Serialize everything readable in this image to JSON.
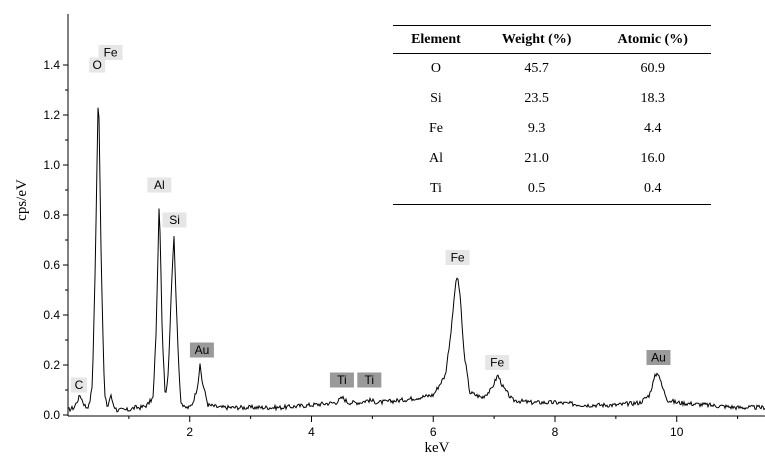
{
  "chart_data": {
    "type": "line",
    "xlabel": "keV",
    "ylabel": "cps/eV",
    "xlim": [
      0.0,
      11.45
    ],
    "ylim": [
      0.0,
      1.5
    ],
    "x_ticks": [
      2,
      4,
      6,
      8,
      10
    ],
    "y_ticks": [
      0.0,
      0.2,
      0.4,
      0.6,
      0.8,
      1.0,
      1.2,
      1.4
    ],
    "x_tick_labels": [
      "2",
      "4",
      "6",
      "8",
      "10"
    ],
    "y_tick_labels": [
      "0.0",
      "0.2",
      "0.4",
      "0.6",
      "0.8",
      "1.0",
      "1.2",
      "1.4"
    ],
    "series": [
      {
        "x": [
          0.0,
          0.1,
          0.2,
          0.25,
          0.3,
          0.35,
          0.4,
          0.45,
          0.5,
          0.55,
          0.6,
          0.65,
          0.7,
          0.75,
          0.8,
          0.9,
          1.0,
          1.1,
          1.2,
          1.3,
          1.4,
          1.45,
          1.5,
          1.55,
          1.6,
          1.65,
          1.7,
          1.74,
          1.8,
          1.85,
          1.9,
          2.0,
          2.05,
          2.1,
          2.13,
          2.17,
          2.2,
          2.3,
          2.5,
          3.0,
          3.5,
          4.0,
          4.4,
          4.51,
          4.6,
          4.8,
          4.93,
          5.1,
          5.5,
          6.0,
          6.2,
          6.3,
          6.36,
          6.4,
          6.45,
          6.5,
          6.6,
          6.8,
          6.95,
          7.06,
          7.15,
          7.3,
          7.6,
          8.0,
          8.5,
          9.0,
          9.4,
          9.55,
          9.65,
          9.7,
          9.75,
          9.85,
          10.0,
          10.5,
          11.0,
          11.45
        ],
        "y": [
          0.02,
          0.03,
          0.08,
          0.05,
          0.03,
          0.04,
          0.12,
          0.62,
          1.34,
          0.55,
          0.08,
          0.03,
          0.08,
          0.04,
          0.02,
          0.02,
          0.02,
          0.03,
          0.03,
          0.04,
          0.07,
          0.35,
          0.87,
          0.3,
          0.07,
          0.18,
          0.52,
          0.72,
          0.3,
          0.06,
          0.03,
          0.03,
          0.05,
          0.09,
          0.12,
          0.2,
          0.14,
          0.04,
          0.03,
          0.03,
          0.03,
          0.04,
          0.05,
          0.07,
          0.05,
          0.05,
          0.06,
          0.05,
          0.06,
          0.08,
          0.16,
          0.35,
          0.51,
          0.56,
          0.45,
          0.26,
          0.09,
          0.07,
          0.1,
          0.16,
          0.11,
          0.06,
          0.05,
          0.05,
          0.04,
          0.04,
          0.05,
          0.08,
          0.16,
          0.17,
          0.12,
          0.06,
          0.05,
          0.04,
          0.03,
          0.03
        ]
      }
    ],
    "annotations": [
      {
        "text": "C",
        "x": 0.18,
        "y": 0.09,
        "shaded": false
      },
      {
        "text": "O",
        "x": 0.48,
        "y": 1.37,
        "shaded": false
      },
      {
        "text": "Fe",
        "x": 0.7,
        "y": 1.42,
        "shaded": false
      },
      {
        "text": "Al",
        "x": 1.5,
        "y": 0.89,
        "shaded": false
      },
      {
        "text": "Si",
        "x": 1.75,
        "y": 0.75,
        "shaded": false
      },
      {
        "text": "Au",
        "x": 2.2,
        "y": 0.23,
        "shaded": true
      },
      {
        "text": "Ti",
        "x": 4.5,
        "y": 0.11,
        "shaded": true
      },
      {
        "text": "Ti",
        "x": 4.95,
        "y": 0.11,
        "shaded": true
      },
      {
        "text": "Fe",
        "x": 6.4,
        "y": 0.6,
        "shaded": false
      },
      {
        "text": "Fe",
        "x": 7.05,
        "y": 0.18,
        "shaded": false
      },
      {
        "text": "Au",
        "x": 9.7,
        "y": 0.2,
        "shaded": true
      }
    ]
  },
  "table": {
    "headers": [
      "Element",
      "Weight (%)",
      "Atomic (%)"
    ],
    "rows": [
      [
        "O",
        "45.7",
        "60.9"
      ],
      [
        "Si",
        "23.5",
        "18.3"
      ],
      [
        "Fe",
        "9.3",
        "4.4"
      ],
      [
        "Al",
        "21.0",
        "16.0"
      ],
      [
        "Ti",
        "0.5",
        "0.4"
      ]
    ]
  },
  "colors": {
    "line": "#000000",
    "label_light": "#e6e6e6",
    "label_dark": "#9a9a9a"
  }
}
